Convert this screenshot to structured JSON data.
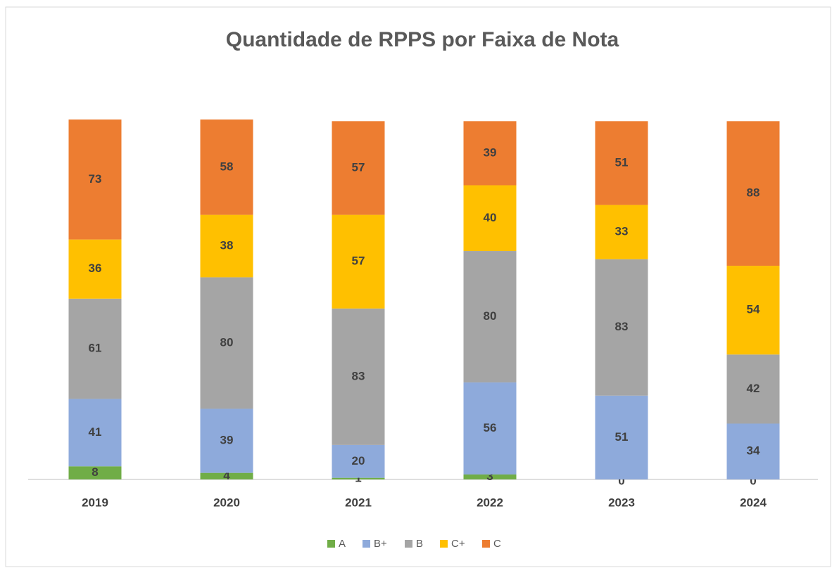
{
  "chart_data": {
    "type": "stacked_bar",
    "title": "Quantidade de RPPS por Faixa de Nota",
    "categories": [
      "2019",
      "2020",
      "2021",
      "2022",
      "2023",
      "2024"
    ],
    "series": [
      {
        "name": "A",
        "color": "#70ad47",
        "values": [
          8,
          4,
          1,
          3,
          0,
          0
        ]
      },
      {
        "name": "B+",
        "color": "#8eaadb",
        "values": [
          41,
          39,
          20,
          56,
          51,
          34
        ]
      },
      {
        "name": "B",
        "color": "#a5a5a5",
        "values": [
          61,
          80,
          83,
          80,
          83,
          42
        ]
      },
      {
        "name": "C+",
        "color": "#ffc000",
        "values": [
          36,
          38,
          57,
          40,
          33,
          54
        ]
      },
      {
        "name": "C",
        "color": "#ed7d31",
        "values": [
          73,
          58,
          57,
          39,
          51,
          88
        ]
      }
    ]
  }
}
